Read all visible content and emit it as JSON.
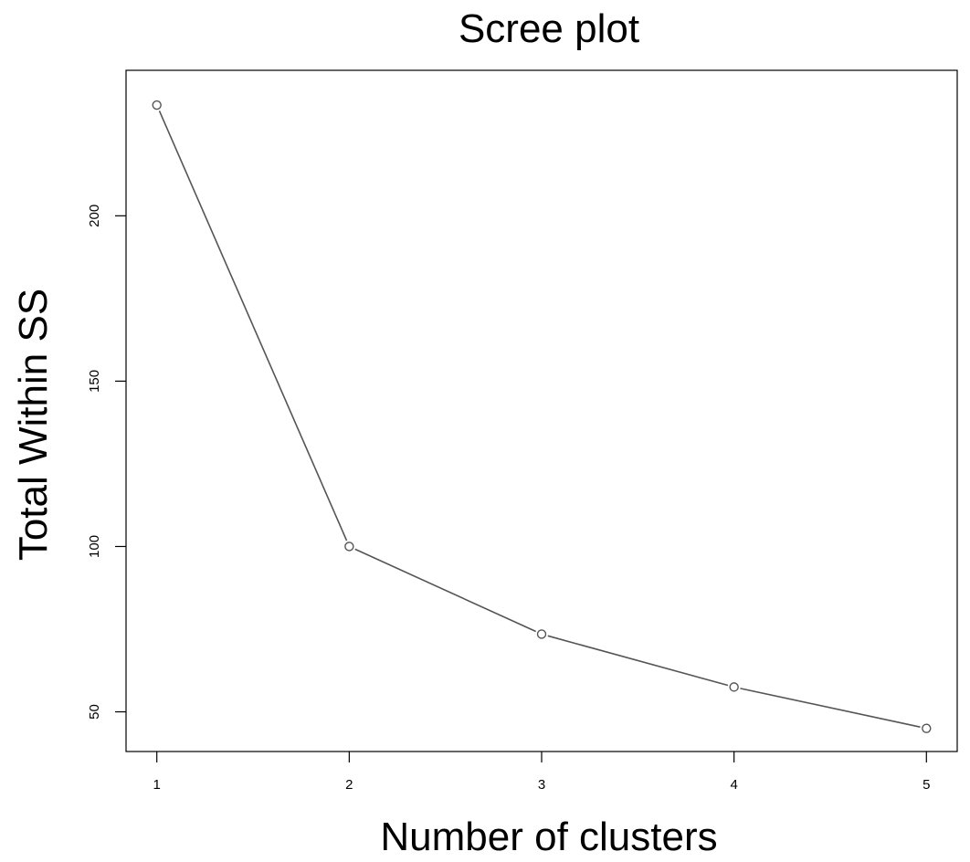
{
  "chart_data": {
    "type": "line",
    "title": "Scree plot",
    "xlabel": "Number of clusters",
    "ylabel": "Total Within SS",
    "x": [
      1,
      2,
      3,
      4,
      5
    ],
    "series": [
      {
        "values": [
          233.5,
          100,
          73.5,
          57.5,
          45
        ]
      }
    ],
    "xlim": [
      0.84,
      5.16
    ],
    "ylim": [
      38,
      244
    ],
    "xticks": [
      1,
      2,
      3,
      4,
      5
    ],
    "yticks": [
      50,
      100,
      150,
      200
    ],
    "xtick_labels": [
      "1",
      "2",
      "3",
      "4",
      "5"
    ],
    "ytick_labels": [
      "50",
      "100",
      "150",
      "200"
    ],
    "marker": "open-circle",
    "grid": false,
    "legend": "none",
    "colors": {
      "line": "#555555",
      "axis": "#000000",
      "background": "#ffffff"
    }
  }
}
